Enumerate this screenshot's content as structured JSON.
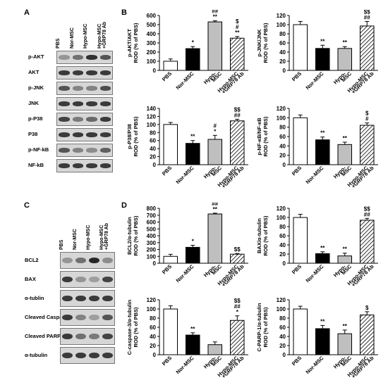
{
  "panels": {
    "A": "A",
    "B": "B",
    "C": "C",
    "D": "D"
  },
  "blots": {
    "A": {
      "lanes": [
        "PBS",
        "Nor-MSC",
        "Hypo-MSC",
        "Hypo-MSC\n+GRP78 Ab"
      ],
      "rows": [
        {
          "name": "p-AKT",
          "bands": [
            0.35,
            0.55,
            0.9,
            0.7
          ]
        },
        {
          "name": "AKT",
          "bands": [
            0.85,
            0.85,
            0.85,
            0.85
          ]
        },
        {
          "name": "p-JNK",
          "bands": [
            0.7,
            0.45,
            0.45,
            0.75
          ]
        },
        {
          "name": "JNK",
          "bands": [
            0.85,
            0.85,
            0.85,
            0.85
          ]
        },
        {
          "name": "p-P38",
          "bands": [
            0.8,
            0.5,
            0.6,
            0.85
          ]
        },
        {
          "name": "P38",
          "bands": [
            0.85,
            0.85,
            0.85,
            0.85
          ]
        },
        {
          "name": "p-NF-kB",
          "bands": [
            0.7,
            0.45,
            0.4,
            0.65
          ]
        },
        {
          "name": "NF-kB",
          "bands": [
            0.85,
            0.85,
            0.85,
            0.85
          ]
        }
      ]
    },
    "C": {
      "lanes": [
        "PBS",
        "Nor-MSC",
        "Hypo-MSC",
        "Hypo-MSC\n+GRP78 Ab"
      ],
      "rows": [
        {
          "name": "BCL2",
          "bands": [
            0.35,
            0.55,
            0.95,
            0.4
          ]
        },
        {
          "name": "BAX",
          "bands": [
            0.85,
            0.35,
            0.3,
            0.8
          ]
        },
        {
          "name": "α-tublin",
          "bands": [
            0.85,
            0.85,
            0.85,
            0.85
          ]
        },
        {
          "name": "Cleaved Caspase-3",
          "bands": [
            0.85,
            0.45,
            0.3,
            0.7
          ]
        },
        {
          "name": "Cleaved PARP-1",
          "bands": [
            0.85,
            0.55,
            0.5,
            0.8
          ]
        },
        {
          "name": "α-tubulin",
          "bands": [
            0.85,
            0.85,
            0.85,
            0.85
          ]
        }
      ]
    }
  },
  "chart_data": [
    {
      "type": "bar",
      "id": "pakt",
      "ylabel": [
        "p-AKT/AKT",
        "ROD (% of PBS)"
      ],
      "categories": [
        "PBS",
        "Nor-MSC",
        "Hypo-\nMSC",
        "Hypo-MSC\n+GRP78 Ab"
      ],
      "values": [
        100,
        238,
        530,
        352
      ],
      "errors": [
        25,
        22,
        12,
        18
      ],
      "ylim": [
        0,
        600
      ],
      "yticks": [
        0,
        100,
        200,
        300,
        400,
        500,
        600
      ],
      "annotations": [
        [],
        [
          "*"
        ],
        [
          "##",
          "**"
        ],
        [
          "$",
          "#",
          "**"
        ]
      ]
    },
    {
      "type": "bar",
      "id": "pjnk",
      "ylabel": [
        "p-JNK/JNK",
        "ROD (% of PBS)"
      ],
      "categories": [
        "PBS",
        "Nor-MSC",
        "Hypo-\nMSC",
        "Hypo-MSC\n+GRP78 Ab"
      ],
      "values": [
        100,
        48,
        48,
        97
      ],
      "errors": [
        7,
        7,
        4,
        10
      ],
      "ylim": [
        0,
        120
      ],
      "yticks": [
        0,
        20,
        40,
        60,
        80,
        100,
        120
      ],
      "annotations": [
        [],
        [
          "**"
        ],
        [
          "**"
        ],
        [
          "$$",
          "##"
        ]
      ]
    },
    {
      "type": "bar",
      "id": "pp38",
      "ylabel": [
        "p-P38/P38",
        "ROD (% of PBS)"
      ],
      "categories": [
        "PBS",
        "Nor-MSC",
        "Hypo-\nMSC",
        "Hypo-MSC\n+GRP78 Ab"
      ],
      "values": [
        100,
        53,
        63,
        109
      ],
      "errors": [
        5,
        7,
        10,
        4
      ],
      "ylim": [
        0,
        140
      ],
      "yticks": [
        0,
        20,
        40,
        60,
        80,
        100,
        120,
        140
      ],
      "annotations": [
        [],
        [
          "**"
        ],
        [
          "#",
          "*"
        ],
        [
          "$$",
          "##"
        ]
      ]
    },
    {
      "type": "bar",
      "id": "pnfkb",
      "ylabel": [
        "p-NF-κB/NF-κB",
        "ROD (% of PBS)"
      ],
      "categories": [
        "PBS",
        "Nor-MSC",
        "Hypo-\nMSC",
        "Hypo-MSC\n+GRP78 Ab"
      ],
      "values": [
        100,
        53,
        43,
        84
      ],
      "errors": [
        6,
        6,
        5,
        5
      ],
      "ylim": [
        0,
        120
      ],
      "yticks": [
        0,
        20,
        40,
        60,
        80,
        100,
        120
      ],
      "annotations": [
        [],
        [
          "**"
        ],
        [
          "**"
        ],
        [
          "$",
          "#"
        ]
      ]
    },
    {
      "type": "bar",
      "id": "bcl2",
      "ylabel": [
        "BCL2/α-tubulin",
        "ROD (% of PBS)"
      ],
      "categories": [
        "PBS",
        "Nor-MSC",
        "Hypo-\nMSC",
        "Hypo-MSC\n+GRP78 Ab"
      ],
      "values": [
        100,
        232,
        718,
        132
      ],
      "errors": [
        30,
        30,
        12,
        10
      ],
      "ylim": [
        0,
        800
      ],
      "yticks": [
        0,
        100,
        200,
        300,
        400,
        500,
        600,
        700,
        800
      ],
      "annotations": [
        [],
        [
          "*"
        ],
        [
          "##",
          "**"
        ],
        [
          "$$"
        ]
      ]
    },
    {
      "type": "bar",
      "id": "bax",
      "ylabel": [
        "BAX/α-tubulin",
        "ROD (% of PBS)"
      ],
      "categories": [
        "PBS",
        "Nor-MSC",
        "Hypo-\nMSC",
        "Hypo-MSC\n+GRP78 Ab"
      ],
      "values": [
        100,
        21,
        16,
        94
      ],
      "errors": [
        7,
        4,
        6,
        4
      ],
      "ylim": [
        0,
        120
      ],
      "yticks": [
        0,
        20,
        40,
        60,
        80,
        100,
        120
      ],
      "annotations": [
        [],
        [
          "**"
        ],
        [
          "**"
        ],
        [
          "$$",
          "##"
        ]
      ]
    },
    {
      "type": "bar",
      "id": "casp3",
      "ylabel": [
        "C-caspase-3/α-tubulin",
        "ROD (% of PBS)"
      ],
      "categories": [
        "PBS",
        "Nor-MSC",
        "Hypo-\nMSC",
        "Hypo-MSC\n+GRP78 Ab"
      ],
      "values": [
        100,
        43,
        22,
        75
      ],
      "errors": [
        7,
        5,
        6,
        10
      ],
      "ylim": [
        0,
        120
      ],
      "yticks": [
        0,
        20,
        40,
        60,
        80,
        100,
        120
      ],
      "annotations": [
        [],
        [
          "**"
        ],
        [],
        [
          "$$",
          "##",
          "*"
        ]
      ]
    },
    {
      "type": "bar",
      "id": "parp1",
      "ylabel": [
        "C-PARP-1/α-tubulin",
        "ROD (% of PBS)"
      ],
      "categories": [
        "PBS",
        "Nor-MSC",
        "Hypo-\nMSC",
        "Hypo-MSC\n+GRP78 Ab"
      ],
      "values": [
        100,
        57,
        46,
        87
      ],
      "errors": [
        6,
        7,
        8,
        7
      ],
      "ylim": [
        0,
        120
      ],
      "yticks": [
        0,
        20,
        40,
        60,
        80,
        100,
        120
      ],
      "annotations": [
        [],
        [
          "**"
        ],
        [
          "**"
        ],
        [
          "$"
        ]
      ]
    }
  ],
  "colors": {
    "bar_fills": [
      "#ffffff",
      "#000000",
      "#bfbfbf",
      "hatch"
    ],
    "blot_bg": "#d6d6d6",
    "band": "#1e1e1e"
  }
}
